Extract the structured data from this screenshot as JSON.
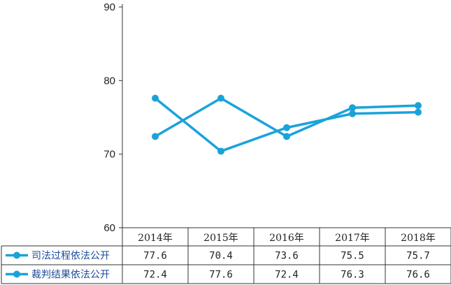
{
  "chart_data": {
    "type": "line",
    "categories": [
      "2014年",
      "2015年",
      "2016年",
      "2017年",
      "2018年"
    ],
    "series": [
      {
        "name": "司法过程依法公开",
        "values": [
          77.6,
          70.4,
          73.6,
          75.5,
          75.7
        ],
        "value_labels": [
          "77.6",
          "70.4",
          "73.6",
          "75.5",
          "75.7"
        ]
      },
      {
        "name": "裁判结果依法公开",
        "values": [
          72.4,
          77.6,
          72.4,
          76.3,
          76.6
        ],
        "value_labels": [
          "72.4",
          "77.6",
          "72.4",
          "76.3",
          "76.6"
        ]
      }
    ],
    "ylim": [
      60,
      90
    ],
    "yticks": [
      "60",
      "70",
      "80",
      "90"
    ],
    "color": "#1aa3d9",
    "grid": false,
    "legend": "data-table-below"
  }
}
